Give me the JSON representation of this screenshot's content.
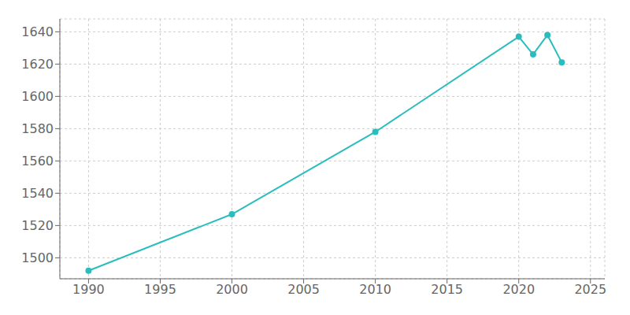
{
  "chart_data": {
    "type": "line",
    "x": [
      1990,
      2000,
      2010,
      2020,
      2021,
      2022,
      2023
    ],
    "values": [
      1492,
      1527,
      1578,
      1637,
      1626,
      1638,
      1621
    ],
    "color": "#2bbdbd",
    "marker": "o",
    "xlim": [
      1988,
      2026
    ],
    "ylim": [
      1487,
      1648
    ],
    "xticks": [
      1990,
      1995,
      2000,
      2005,
      2010,
      2015,
      2020,
      2025
    ],
    "yticks": [
      1500,
      1520,
      1540,
      1560,
      1580,
      1600,
      1620,
      1640
    ],
    "grid": true
  }
}
